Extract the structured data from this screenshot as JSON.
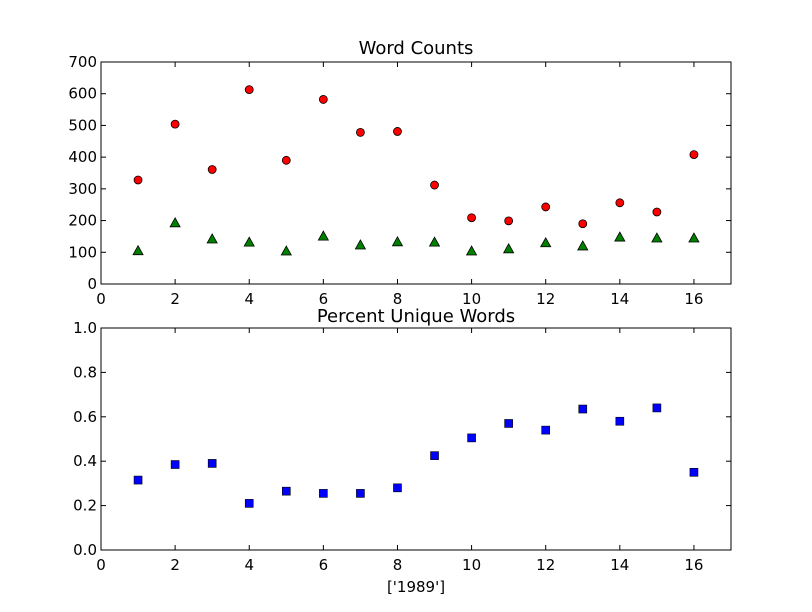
{
  "chart_data": [
    {
      "type": "scatter",
      "title": "Word Counts",
      "xlabel": "",
      "ylabel": "",
      "xlim": [
        0,
        17
      ],
      "ylim": [
        0,
        700
      ],
      "x_ticks": [
        "0",
        "2",
        "4",
        "6",
        "8",
        "10",
        "12",
        "14",
        "16"
      ],
      "y_ticks": [
        "0",
        "100",
        "200",
        "300",
        "400",
        "500",
        "600",
        "700"
      ],
      "grid": false,
      "x": [
        1,
        2,
        3,
        4,
        5,
        6,
        7,
        8,
        9,
        10,
        11,
        12,
        13,
        14,
        15,
        16
      ],
      "series": [
        {
          "marker": "circle",
          "color": "#ff0000",
          "values": [
            328,
            504,
            361,
            613,
            390,
            582,
            478,
            481,
            312,
            209,
            199,
            243,
            190,
            256,
            227,
            408
          ]
        },
        {
          "marker": "triangle",
          "color": "#008000",
          "values": [
            105,
            193,
            142,
            132,
            104,
            151,
            123,
            133,
            132,
            104,
            111,
            130,
            120,
            148,
            145,
            145
          ]
        }
      ]
    },
    {
      "type": "scatter",
      "title": "Percent Unique Words",
      "xlabel": "['1989']",
      "ylabel": "",
      "xlim": [
        0,
        17
      ],
      "ylim": [
        0,
        1.0
      ],
      "x_ticks": [
        "0",
        "2",
        "4",
        "6",
        "8",
        "10",
        "12",
        "14",
        "16"
      ],
      "y_ticks": [
        "0.0",
        "0.2",
        "0.4",
        "0.6",
        "0.8",
        "1.0"
      ],
      "grid": false,
      "x": [
        1,
        2,
        3,
        4,
        5,
        6,
        7,
        8,
        9,
        10,
        11,
        12,
        13,
        14,
        15,
        16
      ],
      "series": [
        {
          "marker": "square",
          "color": "#0000ff",
          "values": [
            0.315,
            0.385,
            0.39,
            0.21,
            0.265,
            0.255,
            0.255,
            0.28,
            0.425,
            0.505,
            0.57,
            0.54,
            0.635,
            0.58,
            0.64,
            0.35
          ]
        }
      ]
    }
  ]
}
